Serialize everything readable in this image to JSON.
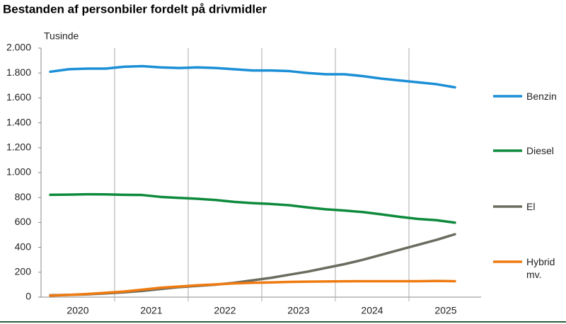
{
  "chart_data": {
    "type": "line",
    "title": "Bestanden af personbiler fordelt på drivmidler",
    "y_label": "Tusinde",
    "categories": [
      null,
      "2020",
      null,
      null,
      null,
      "2021",
      null,
      null,
      null,
      "2022",
      null,
      null,
      null,
      "2023",
      null,
      null,
      null,
      "2024",
      null,
      null,
      null,
      "2025",
      null
    ],
    "series": [
      {
        "name": "Benzin",
        "color": "#1b8fd6",
        "values": [
          1810,
          1830,
          1835,
          1835,
          1850,
          1855,
          1845,
          1840,
          1845,
          1840,
          1830,
          1820,
          1820,
          1815,
          1800,
          1790,
          1790,
          1775,
          1755,
          1740,
          1725,
          1710,
          1685
        ]
      },
      {
        "name": "Diesel",
        "color": "#0e8a3c",
        "values": [
          822,
          823,
          826,
          825,
          822,
          820,
          805,
          797,
          790,
          780,
          765,
          755,
          748,
          738,
          720,
          705,
          695,
          683,
          665,
          645,
          628,
          618,
          598
        ]
      },
      {
        "name": "El",
        "color": "#6b6b5f",
        "values": [
          15,
          18,
          22,
          30,
          38,
          50,
          65,
          80,
          90,
          100,
          115,
          135,
          155,
          180,
          205,
          235,
          265,
          300,
          340,
          380,
          420,
          460,
          505
        ]
      },
      {
        "name": "Hybrid mv.",
        "color": "#ef7b10",
        "values": [
          12,
          18,
          25,
          35,
          45,
          60,
          75,
          85,
          95,
          102,
          110,
          115,
          118,
          122,
          124,
          126,
          127,
          128,
          128,
          128,
          128,
          130,
          128
        ]
      }
    ],
    "ylim": [
      0,
      2000
    ],
    "yticks": [
      0,
      200,
      400,
      600,
      800,
      {
        "value": 1000,
        "label": "1.000"
      },
      {
        "value": 1200,
        "label": "1.200"
      },
      {
        "value": 1400,
        "label": "1.400"
      },
      {
        "value": 1600,
        "label": "1.600"
      },
      {
        "value": 1800,
        "label": "1.800"
      },
      {
        "value": 2000,
        "label": "2.000"
      }
    ]
  }
}
